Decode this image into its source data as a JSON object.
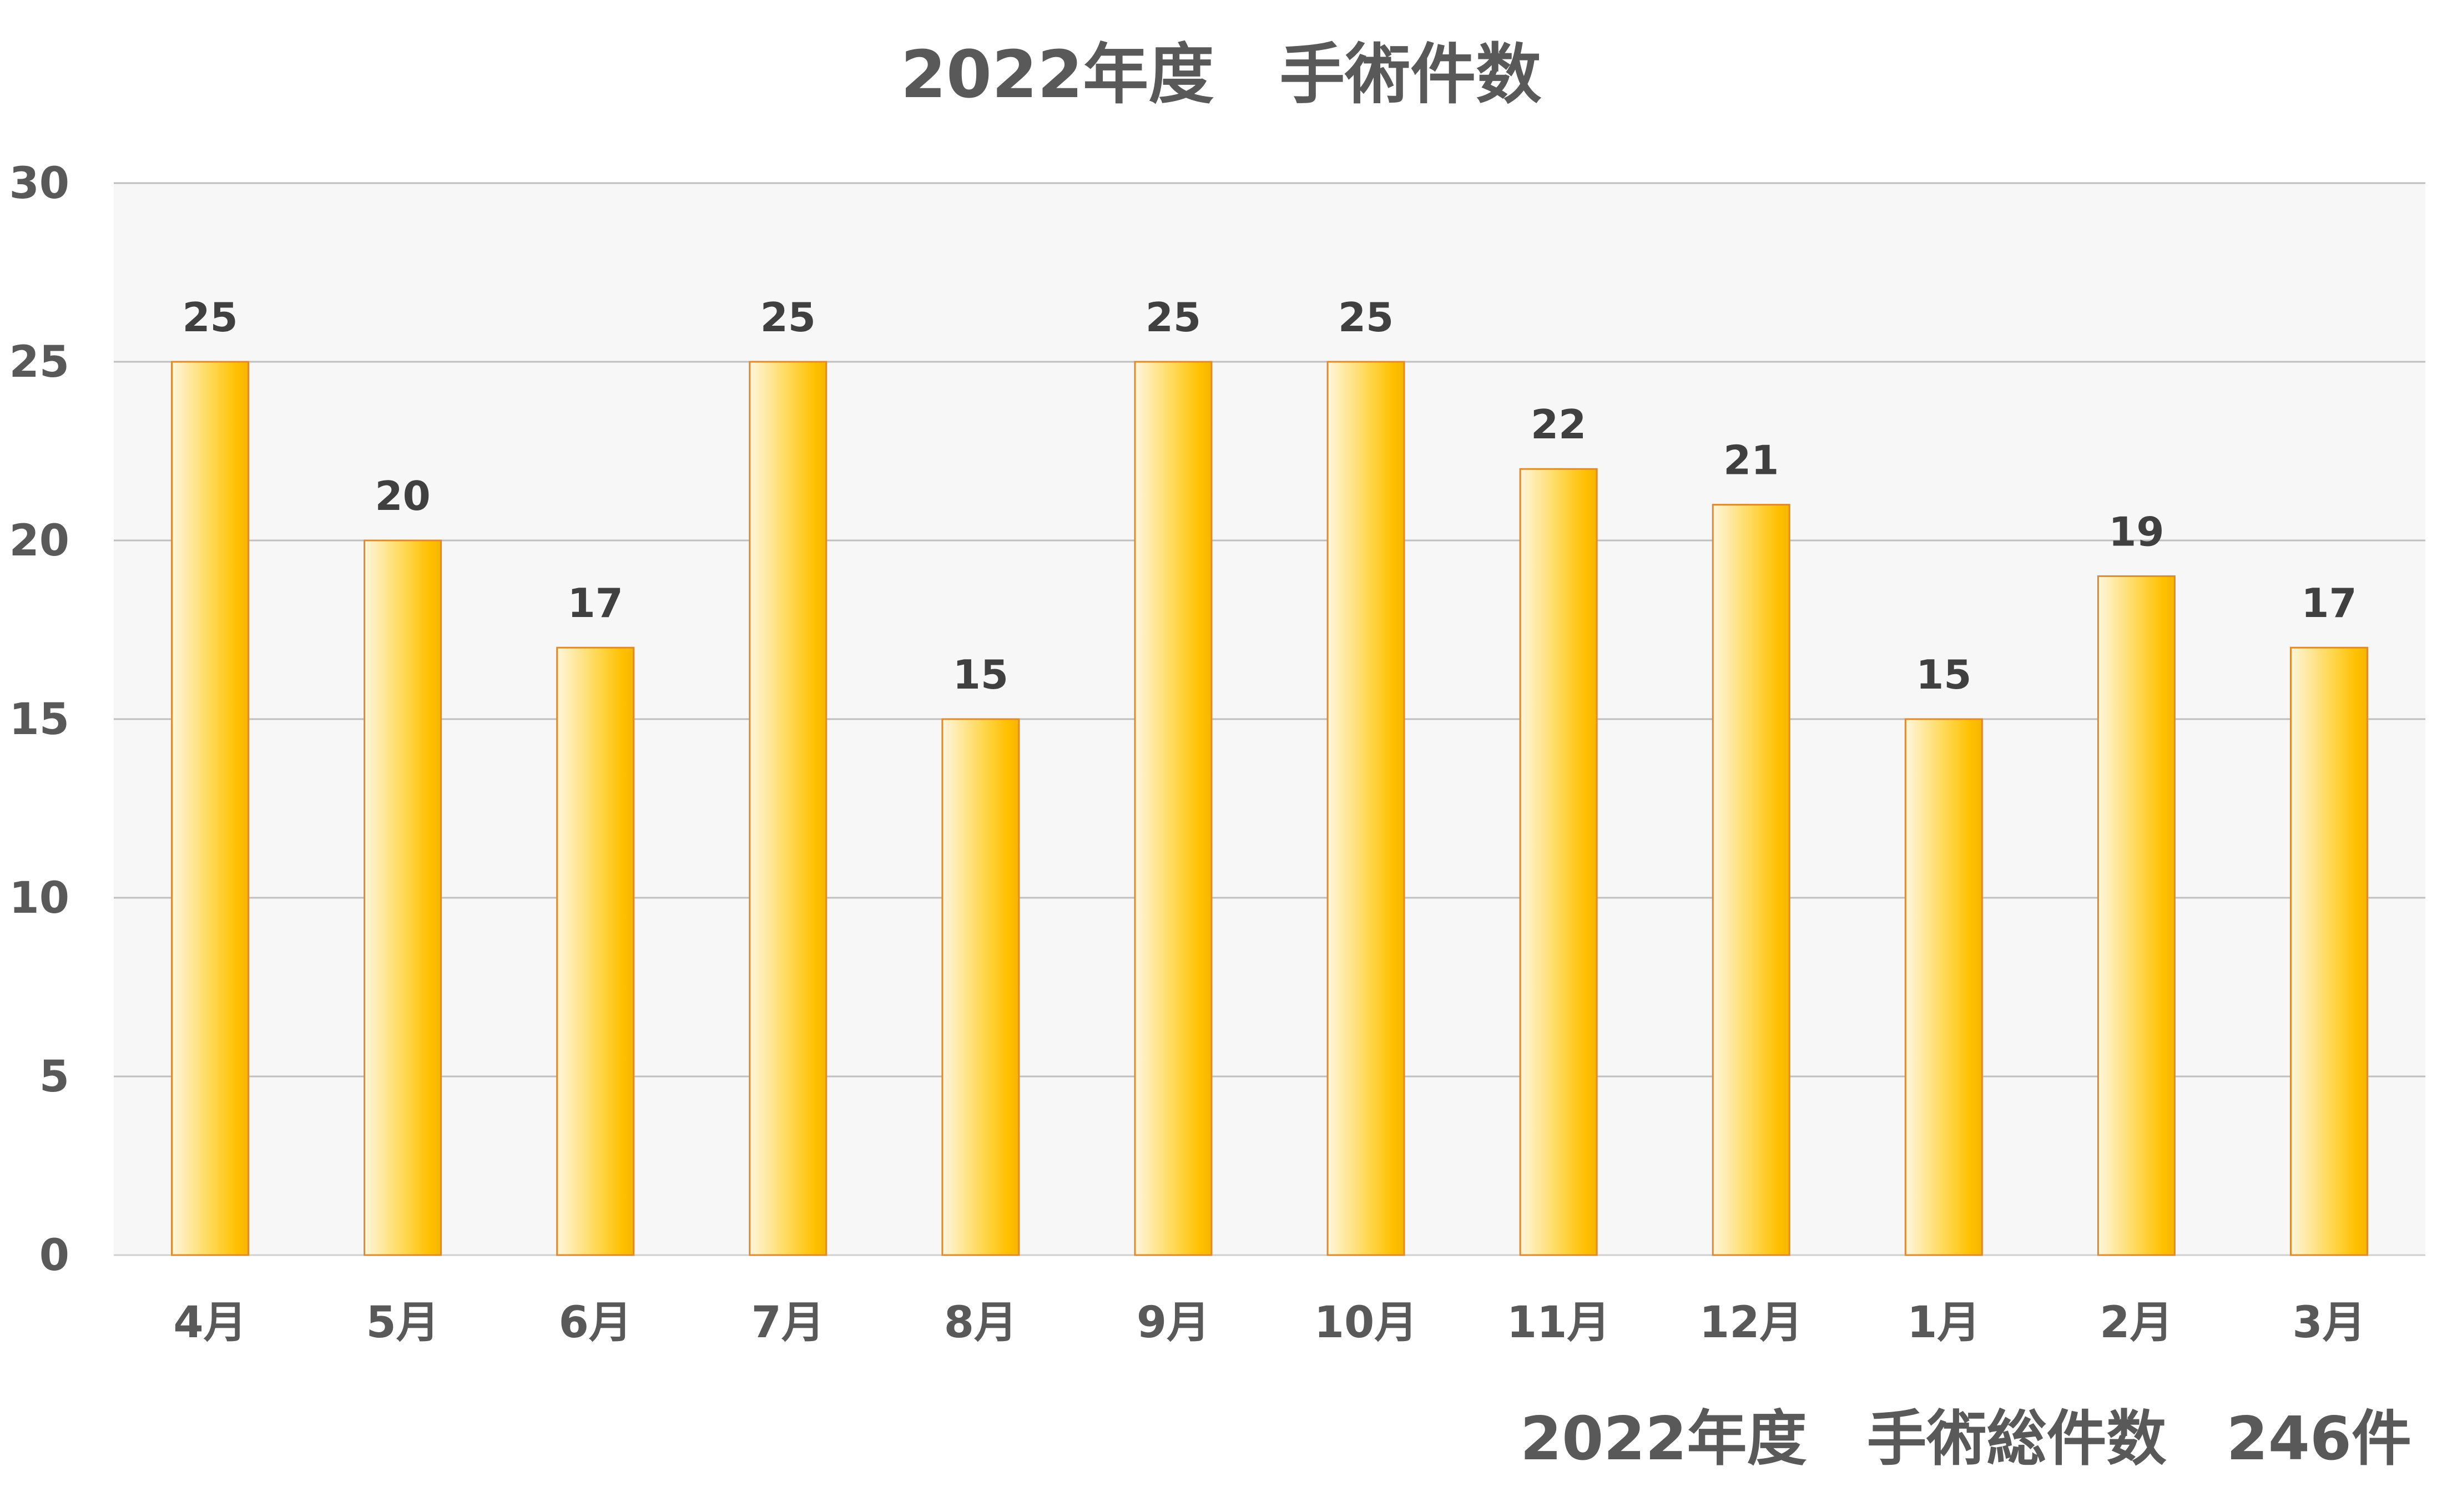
{
  "chart_data": {
    "type": "bar",
    "title": "2022年度　手術件数",
    "categories": [
      "4月",
      "5月",
      "6月",
      "7月",
      "8月",
      "9月",
      "10月",
      "11月",
      "12月",
      "1月",
      "2月",
      "3月"
    ],
    "values": [
      25,
      20,
      17,
      25,
      15,
      25,
      25,
      22,
      21,
      15,
      19,
      17
    ],
    "ylim": [
      0,
      30
    ],
    "yticks": [
      0,
      5,
      10,
      15,
      20,
      25,
      30
    ],
    "grid": true,
    "data_labels": true,
    "xlabel": "",
    "ylabel": ""
  },
  "summary_text": "2022年度　手術総件数　246件",
  "colors": {
    "plot_background": "#f7f7f7",
    "gridline": "#bfbfbf",
    "bar_light": "#fff6dc",
    "bar_dark": "#ffc000",
    "bar_border": "#e08a2c",
    "text": "#595959"
  }
}
